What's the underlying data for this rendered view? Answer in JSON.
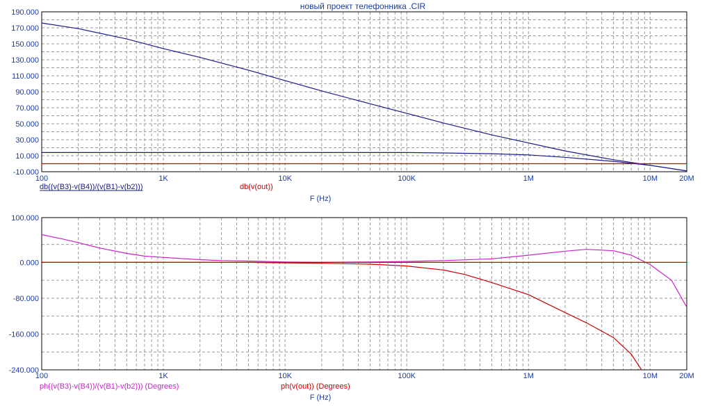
{
  "title": "новый проект телефонника .CIR",
  "colors": {
    "frame": "#000000",
    "grid": "#9a9a9a",
    "text": "#1a3aa8",
    "blue": "#1a1a8c",
    "red": "#cc0000",
    "magenta": "#cc22cc"
  },
  "chart_data": [
    {
      "type": "line",
      "xscale": "log",
      "xlim": [
        100,
        20000000
      ],
      "ylim": [
        -10,
        190
      ],
      "y_ticks": [
        "190.000",
        "170.000",
        "150.000",
        "130.000",
        "110.000",
        "90.000",
        "70.000",
        "50.000",
        "30.000",
        "10.000",
        "-10.000"
      ],
      "y_tick_values": [
        190,
        170,
        150,
        130,
        110,
        90,
        70,
        50,
        30,
        10,
        -10
      ],
      "x_ticks": [
        "100",
        "1K",
        "10K",
        "100K",
        "1M",
        "10M",
        "20M"
      ],
      "x_tick_values": [
        100,
        1000,
        10000,
        100000,
        1000000,
        10000000,
        20000000
      ],
      "xlabel": "F (Hz)",
      "grid": true,
      "series": [
        {
          "name": "db((v(B3)-v(B4))/(v(B1)-v(b2)))",
          "color": "blue",
          "underline": true,
          "x": [
            100,
            200,
            500,
            1000,
            2000,
            5000,
            10000,
            20000,
            50000,
            100000,
            200000,
            500000,
            1000000,
            2000000,
            5000000,
            10000000,
            20000000
          ],
          "y": [
            176,
            169,
            156,
            144,
            133,
            117,
            104,
            91,
            75,
            63,
            51,
            36,
            26,
            16,
            5,
            -2,
            -9
          ]
        },
        {
          "name": "",
          "color": "blue",
          "x": [
            100,
            1000,
            10000,
            100000,
            200000,
            500000,
            1000000,
            2000000,
            5000000,
            10000000,
            20000000
          ],
          "y": [
            14,
            14,
            14,
            14,
            13.5,
            12.5,
            11,
            8,
            3,
            -2,
            -9
          ]
        },
        {
          "name": "db(v(out))",
          "color": "red",
          "x": [
            100,
            20000000
          ],
          "y": [
            0,
            0
          ]
        }
      ]
    },
    {
      "type": "line",
      "xscale": "log",
      "xlim": [
        100,
        20000000
      ],
      "ylim": [
        -240,
        100
      ],
      "y_ticks": [
        "100.000",
        "0.000",
        "-80.000",
        "-160.000",
        "-240.000"
      ],
      "y_tick_values": [
        100,
        0,
        -80,
        -160,
        -240
      ],
      "x_ticks": [
        "100",
        "1K",
        "10K",
        "100K",
        "1M",
        "10M",
        "20M"
      ],
      "x_tick_values": [
        100,
        1000,
        10000,
        100000,
        1000000,
        10000000,
        20000000
      ],
      "xlabel": "F (Hz)",
      "grid": true,
      "series": [
        {
          "name": "ph((v(B3)-v(B4))/(v(B1)-v(b2))) (Degrees)",
          "color": "magenta",
          "x": [
            100,
            150,
            200,
            300,
            500,
            700,
            1000,
            2000,
            3000,
            5000,
            10000,
            20000,
            50000,
            100000,
            200000,
            500000,
            1000000,
            2000000,
            3000000,
            5000000,
            7000000,
            10000000,
            15000000,
            20000000
          ],
          "y": [
            62,
            52,
            44,
            32,
            20,
            14,
            11,
            6,
            4,
            3,
            1,
            0,
            1,
            2,
            4,
            8,
            16,
            25,
            29,
            26,
            16,
            -5,
            -40,
            -100
          ],
          "x_marks": [
            100,
            200,
            500,
            1000,
            2000,
            5000,
            10000,
            20000,
            50000,
            100000,
            200000,
            500000,
            1000000,
            2000000,
            3000000,
            5000000,
            10000000,
            15000000,
            20000000
          ]
        },
        {
          "name": "ph(v(out)) (Degrees)",
          "color": "red",
          "x": [
            100,
            1000,
            5000,
            10000,
            20000,
            50000,
            100000,
            200000,
            300000,
            500000,
            1000000,
            2000000,
            3000000,
            5000000,
            7000000,
            8500000
          ],
          "y": [
            0,
            0,
            0,
            -1,
            -2,
            -4,
            -8,
            -17,
            -27,
            -45,
            -72,
            -112,
            -135,
            -168,
            -205,
            -240
          ],
          "x_marks": [
            10000,
            20000,
            50000,
            100000,
            200000,
            300000,
            500000,
            1000000,
            2000000,
            3000000,
            5000000,
            7000000
          ]
        },
        {
          "name": "",
          "color": "red",
          "x": [
            100,
            20000000
          ],
          "y": [
            0,
            0
          ]
        }
      ]
    }
  ]
}
